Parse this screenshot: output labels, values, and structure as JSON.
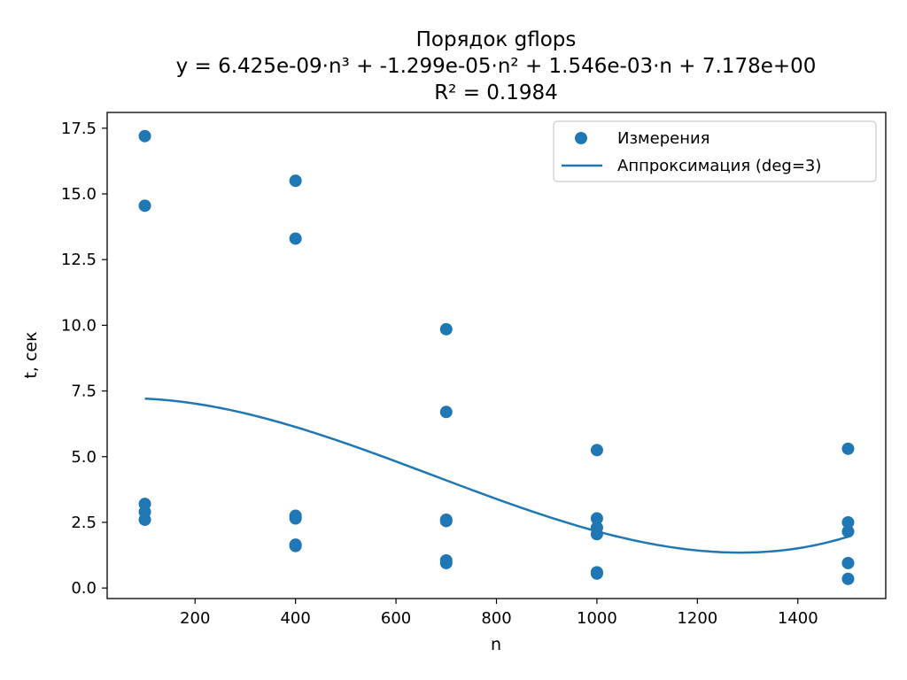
{
  "chart_data": {
    "type": "scatter",
    "title_lines": [
      "Порядок gflops",
      "y = 6.425e-09·n³ + -1.299e-05·n² + 1.546e-03·n + 7.178e+00",
      "R² = 0.1984"
    ],
    "xlabel": "n",
    "ylabel": "t, сек",
    "xlim": [
      25,
      1575
    ],
    "ylim": [
      -0.4,
      18.1
    ],
    "xticks": [
      200,
      400,
      600,
      800,
      1000,
      1200,
      1400
    ],
    "xtick_labels": [
      "200",
      "400",
      "600",
      "800",
      "1000",
      "1200",
      "1400"
    ],
    "yticks": [
      0.0,
      2.5,
      5.0,
      7.5,
      10.0,
      12.5,
      15.0,
      17.5
    ],
    "ytick_labels": [
      "0.0",
      "2.5",
      "5.0",
      "7.5",
      "10.0",
      "12.5",
      "15.0",
      "17.5"
    ],
    "grid": false,
    "legend_position": "top-right",
    "colors": {
      "series": "#1f77b4",
      "axes": "#000000",
      "legend_border": "#cccccc"
    },
    "scatter_series": {
      "name": "Измерения",
      "points": [
        {
          "x": 100,
          "y": 17.2
        },
        {
          "x": 100,
          "y": 14.55
        },
        {
          "x": 100,
          "y": 3.2
        },
        {
          "x": 100,
          "y": 2.9
        },
        {
          "x": 100,
          "y": 2.6
        },
        {
          "x": 400,
          "y": 15.5
        },
        {
          "x": 400,
          "y": 13.3
        },
        {
          "x": 400,
          "y": 2.75
        },
        {
          "x": 400,
          "y": 2.65
        },
        {
          "x": 400,
          "y": 1.65
        },
        {
          "x": 400,
          "y": 1.6
        },
        {
          "x": 700,
          "y": 9.85
        },
        {
          "x": 700,
          "y": 6.7
        },
        {
          "x": 700,
          "y": 2.6
        },
        {
          "x": 700,
          "y": 2.55
        },
        {
          "x": 700,
          "y": 1.05
        },
        {
          "x": 700,
          "y": 0.95
        },
        {
          "x": 1000,
          "y": 5.25
        },
        {
          "x": 1000,
          "y": 2.65
        },
        {
          "x": 1000,
          "y": 2.3
        },
        {
          "x": 1000,
          "y": 2.05
        },
        {
          "x": 1000,
          "y": 0.6
        },
        {
          "x": 1000,
          "y": 0.55
        },
        {
          "x": 1500,
          "y": 5.3
        },
        {
          "x": 1500,
          "y": 2.5
        },
        {
          "x": 1500,
          "y": 2.15
        },
        {
          "x": 1500,
          "y": 0.95
        },
        {
          "x": 1500,
          "y": 0.35
        }
      ]
    },
    "line_series": {
      "name": "Аппроксимация (deg=3)",
      "coefficients": {
        "a3": 6.425e-09,
        "a2": -1.299e-05,
        "a1": 0.001546,
        "a0": 7.178
      },
      "x_range": [
        100,
        1500
      ]
    }
  }
}
